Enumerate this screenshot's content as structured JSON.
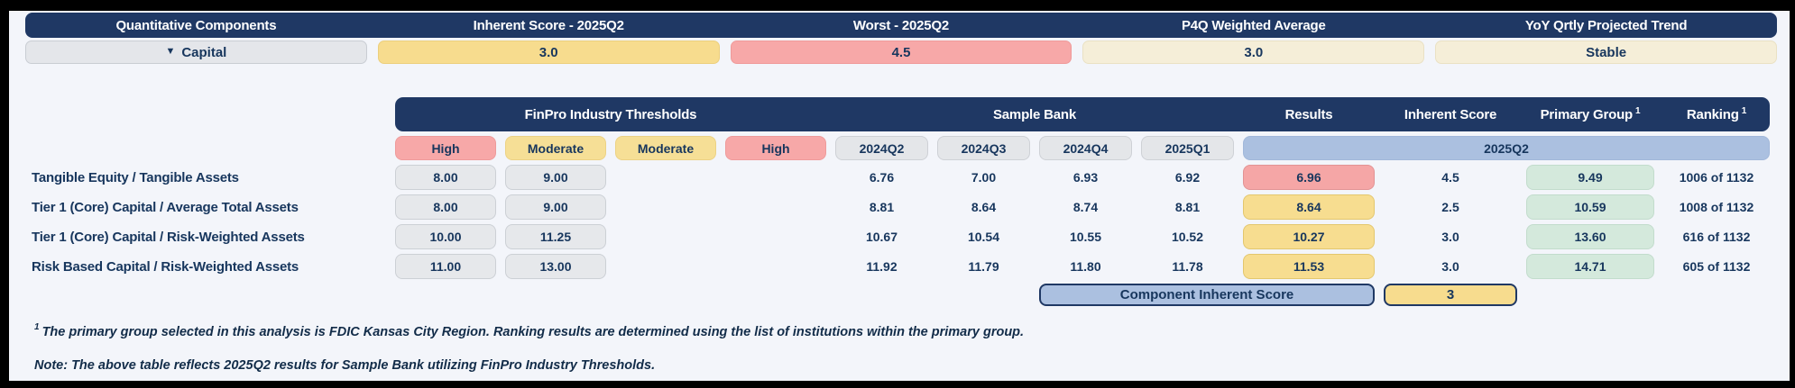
{
  "summary": {
    "headers": {
      "components": "Quantitative Components",
      "inherent": "Inherent Score - 2025Q2",
      "worst": "Worst - 2025Q2",
      "p4q": "P4Q Weighted Average",
      "trend": "YoY Qrtly Projected Trend"
    },
    "component": {
      "expand_icon": "▼",
      "label": "Capital",
      "inherent_score": "3.0",
      "worst": "4.5",
      "p4q_weighted_average": "3.0",
      "trend": "Stable"
    }
  },
  "table": {
    "group_headers": {
      "thresholds": "FinPro Industry Thresholds",
      "bank": "Sample Bank",
      "results": "Results",
      "inherent": "Inherent Score",
      "primary_group": "Primary Group",
      "ranking": "Ranking",
      "footnote_mark": "1"
    },
    "subheaders": {
      "t1": "High",
      "t2": "Moderate",
      "t3": "Moderate",
      "t4": "High",
      "q1": "2024Q2",
      "q2": "2024Q3",
      "q3": "2024Q4",
      "q4": "2025Q1",
      "result_quarter": "2025Q2"
    },
    "rows": [
      {
        "label": "Tangible Equity / Tangible Assets",
        "high": "8.00",
        "moderate": "9.00",
        "q1": "6.76",
        "q2": "7.00",
        "q3": "6.93",
        "q4": "6.92",
        "result": "6.96",
        "result_level": "high",
        "inherent": "4.5",
        "primary_group": "9.49",
        "ranking": "1006 of 1132"
      },
      {
        "label": "Tier 1 (Core) Capital / Average Total Assets",
        "high": "8.00",
        "moderate": "9.00",
        "q1": "8.81",
        "q2": "8.64",
        "q3": "8.74",
        "q4": "8.81",
        "result": "8.64",
        "result_level": "moderate",
        "inherent": "2.5",
        "primary_group": "10.59",
        "ranking": "1008 of 1132"
      },
      {
        "label": "Tier 1 (Core) Capital / Risk-Weighted Assets",
        "high": "10.00",
        "moderate": "11.25",
        "q1": "10.67",
        "q2": "10.54",
        "q3": "10.55",
        "q4": "10.52",
        "result": "10.27",
        "result_level": "moderate",
        "inherent": "3.0",
        "primary_group": "13.60",
        "ranking": "616 of 1132"
      },
      {
        "label": "Risk Based Capital / Risk-Weighted Assets",
        "high": "11.00",
        "moderate": "13.00",
        "q1": "11.92",
        "q2": "11.79",
        "q3": "11.80",
        "q4": "11.78",
        "result": "11.53",
        "result_level": "moderate",
        "inherent": "3.0",
        "primary_group": "14.71",
        "ranking": "605 of 1132"
      }
    ],
    "component_score": {
      "label": "Component Inherent Score",
      "value": "3"
    }
  },
  "footnotes": {
    "f1_mark": "1",
    "f1": "The primary group selected in this analysis is FDIC Kansas City Region. Ranking results are determined using the list of institutions within the primary group.",
    "note": "Note: The above table reflects 2025Q2 results for Sample Bank utilizing FinPro Industry Thresholds."
  },
  "colors": {
    "navy": "#1f3864",
    "gold": "#f7dc8e",
    "pink": "#f7a8a8",
    "cream": "#f5eed8",
    "periwinkle": "#abc0e0",
    "green": "#d4e9dc",
    "gray": "#e4e6ea",
    "page_bg": "#f3f5fa"
  }
}
